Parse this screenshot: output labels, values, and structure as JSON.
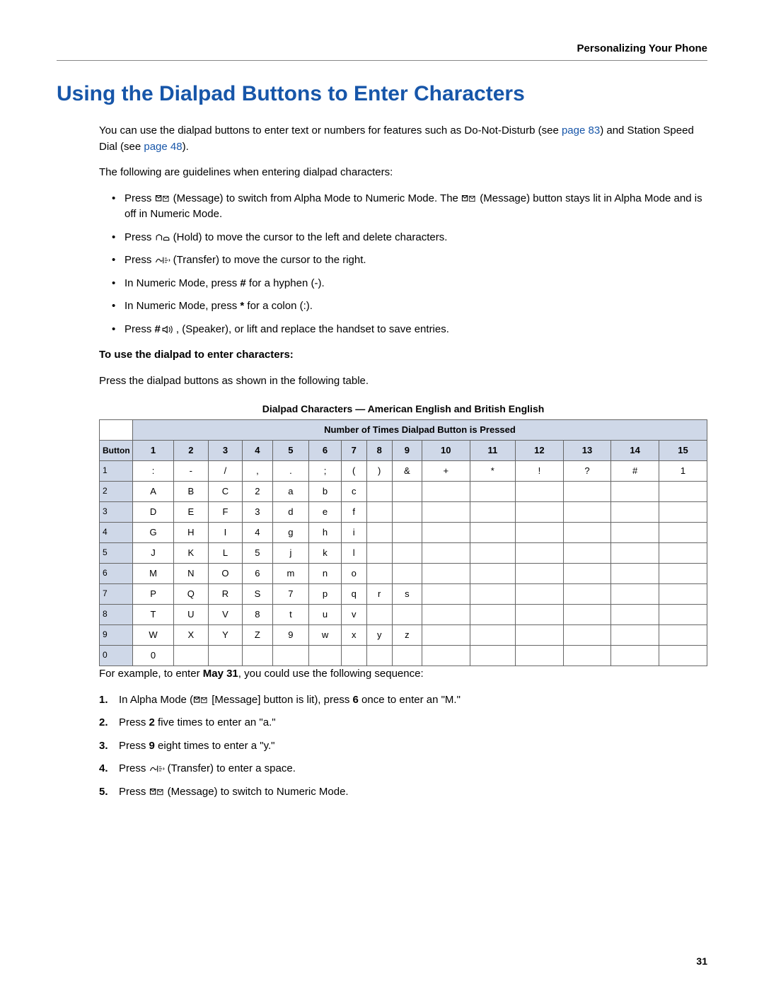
{
  "header": {
    "section": "Personalizing Your Phone"
  },
  "title": "Using the Dialpad Buttons to Enter Characters",
  "intro": {
    "pre": "You can use the dialpad buttons to enter text or numbers for features such as Do-Not-Disturb (see ",
    "link1": "page 83",
    "mid": ") and Station Speed Dial (see ",
    "link2": "page 48",
    "post": ")."
  },
  "guidelines_intro": "The following are guidelines when entering dialpad characters:",
  "guidelines": [
    {
      "pre": "Press ",
      "icon": "message",
      "mid": " (Message) to switch from Alpha Mode to Numeric Mode. The ",
      "icon2": "message",
      "post": " (Message) button stays lit in Alpha Mode and is off in Numeric Mode."
    },
    {
      "pre": "Press ",
      "icon": "hold",
      "post": " (Hold) to move the cursor to the left and delete characters."
    },
    {
      "pre": "Press ",
      "icon": "transfer",
      "post": " (Transfer) to move the cursor to the right."
    },
    {
      "text_html": "In Numeric Mode, press <b>#</b> for a hyphen (-)."
    },
    {
      "text_html": "In Numeric Mode, press <b>*</b> for a colon (:)."
    },
    {
      "pre": "Press ",
      "bold": "#",
      "mid": ", ",
      "icon": "speaker",
      "post": " (Speaker), or lift and replace the handset to save entries."
    }
  ],
  "how_to_heading": "To use the dialpad to enter characters:",
  "how_to_text": "Press the dialpad buttons as shown in the following table.",
  "table": {
    "title": "Dialpad Characters — American English and British English",
    "header_span": "Number of Times Dialpad Button is Pressed",
    "button_label": "Button",
    "press_counts": [
      "1",
      "2",
      "3",
      "4",
      "5",
      "6",
      "7",
      "8",
      "9",
      "10",
      "11",
      "12",
      "13",
      "14",
      "15"
    ],
    "rows": [
      {
        "btn": "1",
        "cells": [
          ":",
          "-",
          "/",
          ",",
          ".",
          ";",
          "(",
          ")",
          "&",
          "+",
          "*",
          "!",
          "?",
          "#",
          "1"
        ]
      },
      {
        "btn": "2",
        "cells": [
          "A",
          "B",
          "C",
          "2",
          "a",
          "b",
          "c",
          "",
          "",
          "",
          "",
          "",
          "",
          "",
          ""
        ]
      },
      {
        "btn": "3",
        "cells": [
          "D",
          "E",
          "F",
          "3",
          "d",
          "e",
          "f",
          "",
          "",
          "",
          "",
          "",
          "",
          "",
          ""
        ]
      },
      {
        "btn": "4",
        "cells": [
          "G",
          "H",
          "I",
          "4",
          "g",
          "h",
          "i",
          "",
          "",
          "",
          "",
          "",
          "",
          "",
          ""
        ]
      },
      {
        "btn": "5",
        "cells": [
          "J",
          "K",
          "L",
          "5",
          "j",
          "k",
          "l",
          "",
          "",
          "",
          "",
          "",
          "",
          "",
          ""
        ]
      },
      {
        "btn": "6",
        "cells": [
          "M",
          "N",
          "O",
          "6",
          "m",
          "n",
          "o",
          "",
          "",
          "",
          "",
          "",
          "",
          "",
          ""
        ]
      },
      {
        "btn": "7",
        "cells": [
          "P",
          "Q",
          "R",
          "S",
          "7",
          "p",
          "q",
          "r",
          "s",
          "",
          "",
          "",
          "",
          "",
          ""
        ]
      },
      {
        "btn": "8",
        "cells": [
          "T",
          "U",
          "V",
          "8",
          "t",
          "u",
          "v",
          "",
          "",
          "",
          "",
          "",
          "",
          "",
          ""
        ]
      },
      {
        "btn": "9",
        "cells": [
          "W",
          "X",
          "Y",
          "Z",
          "9",
          "w",
          "x",
          "y",
          "z",
          "",
          "",
          "",
          "",
          "",
          ""
        ]
      },
      {
        "btn": "0",
        "cells": [
          "0",
          "",
          "",
          "",
          "",
          "",
          "",
          "",
          "",
          "",
          "",
          "",
          "",
          "",
          ""
        ]
      }
    ]
  },
  "example_intro_pre": "For example, to enter ",
  "example_intro_bold": "May 31",
  "example_intro_post": ", you could use the following sequence:",
  "steps": [
    {
      "pre": "In Alpha Mode (",
      "icon": "message",
      "mid": " [Message] button is lit), press ",
      "bold": "6",
      "post": " once to enter an \"M.\""
    },
    {
      "pre": "Press ",
      "bold": "2",
      "post": " five times to enter an \"a.\""
    },
    {
      "pre": "Press ",
      "bold": "9",
      "post": " eight times to enter a \"y.\""
    },
    {
      "pre": "Press ",
      "icon": "transfer",
      "post": " (Transfer) to enter a space."
    },
    {
      "pre": "Press ",
      "icon": "message",
      "post": " (Message) to switch to Numeric Mode."
    }
  ],
  "page_number": "31",
  "colors": {
    "heading": "#1756a9",
    "link": "#1756a9",
    "table_header_bg": "#cfd8e8",
    "border": "#666666"
  }
}
